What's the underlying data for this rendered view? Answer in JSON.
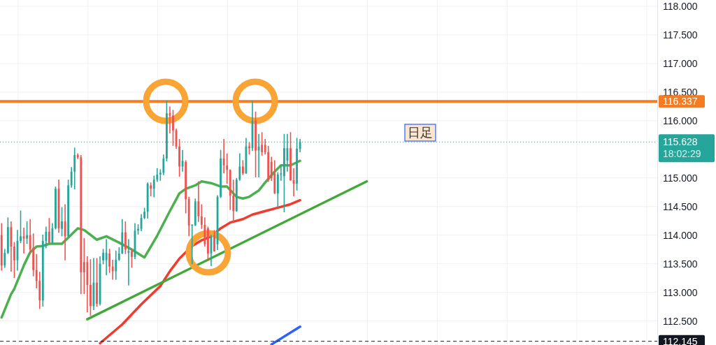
{
  "chart_data": {
    "type": "candlestick",
    "categories": [
      null,
      null,
      null,
      null,
      null,
      null,
      null,
      null,
      null,
      null,
      null,
      null,
      null,
      null,
      null,
      null,
      null,
      null,
      null,
      null,
      null,
      null,
      null,
      null,
      null,
      null,
      null,
      null,
      null,
      null,
      null,
      null,
      null,
      null,
      null,
      null,
      null,
      null,
      null,
      null,
      null,
      null,
      null,
      null,
      null,
      null,
      null,
      null,
      null,
      null,
      null,
      null,
      null,
      null,
      null,
      null,
      null,
      null,
      null,
      null,
      null,
      null,
      null,
      null,
      null,
      null,
      null,
      null,
      null,
      null,
      null,
      null,
      null,
      null,
      null,
      null,
      null,
      null,
      null,
      null,
      null,
      null,
      null,
      null,
      null,
      null,
      null,
      null,
      null,
      null,
      null,
      null,
      null,
      null,
      null,
      null,
      null,
      null,
      null,
      null,
      null,
      null,
      null,
      null,
      null,
      null,
      null,
      null,
      null,
      null,
      null,
      null,
      null,
      null,
      null,
      null,
      null,
      null,
      null,
      null,
      null,
      null,
      null,
      null,
      null,
      null,
      null,
      null,
      null,
      null,
      null,
      null,
      null,
      null,
      null,
      null,
      null,
      null,
      null,
      null,
      null,
      null,
      null,
      null,
      null,
      null,
      null,
      null,
      null,
      null,
      null,
      null,
      null,
      null,
      null,
      null,
      null,
      null,
      null,
      null,
      null,
      null,
      null,
      null,
      null,
      null,
      null,
      null,
      null,
      null,
      null,
      null,
      null,
      null,
      null,
      null,
      null,
      null,
      null,
      null,
      null,
      null,
      null,
      null,
      null,
      null,
      null,
      null,
      null,
      null,
      null,
      null,
      null,
      null,
      null,
      null,
      null,
      null,
      null,
      null,
      null,
      null,
      null,
      null,
      null,
      null,
      null
    ],
    "ohlc": [
      [
        114.0,
        114.2,
        113.39,
        113.47
      ],
      [
        113.47,
        113.75,
        113.44,
        113.69
      ],
      [
        113.69,
        114.3,
        113.68,
        114.14
      ],
      [
        114.14,
        114.23,
        113.37,
        113.8
      ],
      [
        113.8,
        113.87,
        113.26,
        113.56
      ],
      [
        113.56,
        114.08,
        113.39,
        113.9
      ],
      [
        113.9,
        114.42,
        113.87,
        113.98
      ],
      [
        113.98,
        114.12,
        113.69,
        113.94
      ],
      [
        113.94,
        114.23,
        113.86,
        114.0
      ],
      [
        114.0,
        114.27,
        113.68,
        113.75
      ],
      [
        113.78,
        114.02,
        113.29,
        113.39
      ],
      [
        113.39,
        113.66,
        113.08,
        113.2
      ],
      [
        113.2,
        113.35,
        112.72,
        112.86
      ],
      [
        112.86,
        114.0,
        112.76,
        113.9
      ],
      [
        113.9,
        114.14,
        113.78,
        114.06
      ],
      [
        114.06,
        114.29,
        113.87,
        113.87
      ],
      [
        113.87,
        114.2,
        113.86,
        114.12
      ],
      [
        114.12,
        114.84,
        114.11,
        114.81
      ],
      [
        114.81,
        114.96,
        114.05,
        114.12
      ],
      [
        114.11,
        114.48,
        113.99,
        114.24
      ],
      [
        114.24,
        114.53,
        113.57,
        113.98
      ],
      [
        113.98,
        114.96,
        113.98,
        114.87
      ],
      [
        114.87,
        115.18,
        114.84,
        115.11
      ],
      [
        115.11,
        115.52,
        114.81,
        115.4
      ],
      [
        115.4,
        115.42,
        115.34,
        115.36
      ],
      [
        115.36,
        115.39,
        112.98,
        113.35
      ],
      [
        113.53,
        113.94,
        112.98,
        113.35
      ],
      [
        113.53,
        113.62,
        112.66,
        113.13
      ],
      [
        113.13,
        113.57,
        112.6,
        112.76
      ],
      [
        112.76,
        113.59,
        112.7,
        113.17
      ],
      [
        113.17,
        113.59,
        112.76,
        112.8
      ],
      [
        112.8,
        113.62,
        112.78,
        113.5
      ],
      [
        113.56,
        113.75,
        113.5,
        113.69
      ],
      [
        113.56,
        113.92,
        113.31,
        113.69
      ],
      [
        113.68,
        113.75,
        113.35,
        113.45
      ],
      [
        113.45,
        113.56,
        113.23,
        113.37
      ],
      [
        113.37,
        113.72,
        113.23,
        113.57
      ],
      [
        113.57,
        113.78,
        113.56,
        113.68
      ],
      [
        113.68,
        114.27,
        113.68,
        114.05
      ],
      [
        114.05,
        114.23,
        113.68,
        113.75
      ],
      [
        113.69,
        113.92,
        113.13,
        113.72
      ],
      [
        113.72,
        113.75,
        113.44,
        113.62
      ],
      [
        113.62,
        114.2,
        113.59,
        114.08
      ],
      [
        114.08,
        114.18,
        114.02,
        114.11
      ],
      [
        114.11,
        114.36,
        114.08,
        114.3
      ],
      [
        114.3,
        114.47,
        114.29,
        114.41
      ],
      [
        114.41,
        114.91,
        114.3,
        114.9
      ],
      [
        114.87,
        114.91,
        114.69,
        114.81
      ],
      [
        114.81,
        115.03,
        114.67,
        114.97
      ],
      [
        114.97,
        115.16,
        114.94,
        115.06
      ],
      [
        115.06,
        115.14,
        114.96,
        115.09
      ],
      [
        115.09,
        115.4,
        115.06,
        115.34
      ],
      [
        115.34,
        116.34,
        115.3,
        116.13
      ],
      [
        116.13,
        116.24,
        115.79,
        116.09
      ],
      [
        116.09,
        116.18,
        115.57,
        115.83
      ],
      [
        115.83,
        115.85,
        115.52,
        115.55
      ],
      [
        115.55,
        115.67,
        115.03,
        115.2
      ],
      [
        115.2,
        115.48,
        115.12,
        115.3
      ],
      [
        115.28,
        115.3,
        114.39,
        114.63
      ],
      [
        114.63,
        114.66,
        113.99,
        114.17
      ],
      [
        114.17,
        114.18,
        113.5,
        114.18
      ],
      [
        114.17,
        114.63,
        114.17,
        114.59
      ],
      [
        114.59,
        114.93,
        114.24,
        114.33
      ],
      [
        114.33,
        114.53,
        114.12,
        114.18
      ],
      [
        114.18,
        114.3,
        113.81,
        113.84
      ],
      [
        114.12,
        114.14,
        113.56,
        113.68
      ],
      [
        113.68,
        114.0,
        113.47,
        113.98
      ],
      [
        114.0,
        114.08,
        113.72,
        113.72
      ],
      [
        113.84,
        114.69,
        113.75,
        114.67
      ],
      [
        114.67,
        115.48,
        114.66,
        115.34
      ],
      [
        115.34,
        115.67,
        115.09,
        115.22
      ],
      [
        115.22,
        115.42,
        114.91,
        115.14
      ],
      [
        115.14,
        115.14,
        114.45,
        114.69
      ],
      [
        114.69,
        114.96,
        114.24,
        114.42
      ],
      [
        114.42,
        114.99,
        114.42,
        114.97
      ],
      [
        114.97,
        115.42,
        114.96,
        115.2
      ],
      [
        115.2,
        115.3,
        115.06,
        115.08
      ],
      [
        115.08,
        115.69,
        115.08,
        115.55
      ],
      [
        115.55,
        115.61,
        115.42,
        115.52
      ],
      [
        115.52,
        116.34,
        115.48,
        116.0
      ],
      [
        116.0,
        116.15,
        115.02,
        115.48
      ],
      [
        115.48,
        115.76,
        115.02,
        115.55
      ],
      [
        115.58,
        115.79,
        115.4,
        115.45
      ],
      [
        115.58,
        115.67,
        115.42,
        115.45
      ],
      [
        115.45,
        115.55,
        114.94,
        114.96
      ],
      [
        115.28,
        115.36,
        114.96,
        115.0
      ],
      [
        115.08,
        115.3,
        114.73,
        114.73
      ],
      [
        114.73,
        115.09,
        114.48,
        115.06
      ],
      [
        115.06,
        115.22,
        114.96,
        115.08
      ],
      [
        115.03,
        115.76,
        114.41,
        115.52
      ],
      [
        115.3,
        115.76,
        115.12,
        115.52
      ],
      [
        115.52,
        115.79,
        114.96,
        114.96
      ],
      [
        114.96,
        115.16,
        114.69,
        114.9
      ],
      [
        114.9,
        115.69,
        114.79,
        115.51
      ],
      [
        115.51,
        115.67,
        115.46,
        115.628
      ],
      null,
      null,
      null,
      null,
      null,
      null,
      null,
      null,
      null,
      null,
      null,
      null,
      null,
      null,
      null,
      null,
      null,
      null,
      null,
      null,
      null,
      null,
      null,
      null,
      null,
      null,
      null,
      null,
      null,
      null,
      null,
      null,
      null,
      null,
      null,
      null,
      null,
      null,
      null,
      null,
      null,
      null,
      null,
      null,
      null,
      null,
      null,
      null,
      null,
      null,
      null,
      null,
      null,
      null,
      null,
      null,
      null,
      null,
      null,
      null,
      null,
      null,
      null,
      null,
      null,
      null,
      null,
      null,
      null,
      null,
      null,
      null,
      null,
      null,
      null,
      null,
      null,
      null,
      null,
      null,
      null,
      null,
      null,
      null,
      null,
      null,
      null,
      null,
      null,
      null,
      null,
      null,
      null,
      null,
      null,
      null,
      null,
      null,
      null,
      null,
      null,
      null,
      null,
      null,
      null,
      null,
      null,
      null,
      null,
      null,
      null,
      null
    ],
    "colors": [
      "#ef5350",
      "#26a69a",
      "#26a69a",
      "#ef5350",
      "#ef5350",
      "#26a69a",
      "#26a69a",
      "#ef5350",
      "#26a69a",
      "#ef5350",
      "#ef5350",
      "#ef5350",
      "#ef5350",
      "#26a69a",
      "#26a69a",
      "#ef5350",
      "#26a69a",
      "#26a69a",
      "#ef5350",
      "#26a69a",
      "#ef5350",
      "#26a69a",
      "#26a69a",
      "#26a69a",
      "#ef5350",
      "#ef5350",
      "#ef5350",
      "#ef5350",
      "#ef5350",
      "#26a69a",
      "#ef5350",
      "#26a69a",
      "#26a69a",
      "#26a69a",
      "#ef5350",
      "#ef5350",
      "#26a69a",
      "#26a69a",
      "#26a69a",
      "#ef5350",
      "#26a69a",
      "#ef5350",
      "#26a69a",
      "#26a69a",
      "#26a69a",
      "#26a69a",
      "#26a69a",
      "#ef5350",
      "#26a69a",
      "#26a69a",
      "#26a69a",
      "#26a69a",
      "#26a69a",
      "#ef5350",
      "#ef5350",
      "#ef5350",
      "#ef5350",
      "#26a69a",
      "#ef5350",
      "#ef5350",
      "#26a69a",
      "#26a69a",
      "#ef5350",
      "#ef5350",
      "#ef5350",
      "#ef5350",
      "#26a69a",
      "#ef5350",
      "#26a69a",
      "#26a69a",
      "#ef5350",
      "#ef5350",
      "#ef5350",
      "#ef5350",
      "#26a69a",
      "#26a69a",
      "#ef5350",
      "#26a69a",
      "#ef5350",
      "#26a69a",
      "#ef5350",
      "#26a69a",
      "#ef5350",
      "#ef5350",
      "#ef5350",
      "#ef5350",
      "#ef5350",
      "#26a69a",
      "#26a69a",
      "#26a69a",
      "#26a69a",
      "#ef5350",
      "#ef5350",
      "#26a69a",
      "#26a69a",
      null,
      null,
      null,
      null,
      null,
      null,
      null,
      null,
      null,
      null,
      null,
      null,
      null,
      null,
      null,
      null,
      null,
      null,
      null,
      null,
      null,
      null,
      null,
      null,
      null,
      null,
      null,
      null,
      null,
      null,
      null,
      null,
      null,
      null,
      null,
      null,
      null,
      null,
      null,
      null,
      null,
      null,
      null,
      null,
      null,
      null,
      null,
      null,
      null,
      null,
      null,
      null,
      null,
      null,
      null,
      null,
      null,
      null,
      null,
      null,
      null,
      null,
      null,
      null,
      null,
      null,
      null,
      null,
      null,
      null,
      null,
      null,
      null,
      null,
      null,
      null,
      null,
      null,
      null,
      null,
      null,
      null,
      null,
      null,
      null,
      null,
      null,
      null,
      null,
      null,
      null,
      null,
      null,
      null,
      null,
      null,
      null,
      null,
      null,
      null,
      null,
      null,
      null,
      null,
      null,
      null,
      null,
      null,
      null,
      null,
      null,
      null
    ],
    "series": [
      {
        "type": "line",
        "color": "#4caf50",
        "values": [
          112.56,
          null,
          null,
          112.97,
          113.06,
          null,
          null,
          113.47,
          null,
          113.7,
          null,
          113.8,
          null,
          113.81,
          null,
          113.85,
          null,
          null,
          null,
          113.85,
          null,
          null,
          null,
          null,
          114.12,
          null,
          114.09,
          null,
          null,
          null,
          113.92,
          null,
          null,
          113.98,
          null,
          null,
          null,
          113.87,
          null,
          null,
          null,
          113.75,
          null,
          null,
          null,
          113.61,
          null,
          null,
          null,
          113.99,
          null,
          null,
          null,
          114.42,
          null,
          null,
          114.73,
          null,
          114.81,
          null,
          null,
          114.87,
          null,
          114.94,
          null,
          null,
          114.91,
          null,
          null,
          114.85,
          null,
          114.85,
          null,
          null,
          114.67,
          null,
          114.64,
          null,
          114.67,
          null,
          null,
          114.78,
          null,
          114.92,
          null,
          null,
          115.11,
          null,
          115.22,
          null,
          null,
          115.22,
          null,
          null,
          115.3,
          null,
          null,
          null,
          null,
          null,
          null,
          null,
          null,
          null,
          null,
          null,
          null,
          null,
          null,
          null,
          null,
          null,
          null,
          null,
          null,
          null,
          null,
          null,
          null,
          null,
          null,
          null,
          null,
          null,
          null,
          null,
          null,
          null,
          null,
          null,
          null,
          null,
          null,
          null,
          null,
          null,
          null,
          null,
          null,
          null,
          null,
          null,
          null,
          null,
          null,
          null,
          null,
          null,
          null,
          null,
          null,
          null,
          null,
          null,
          null,
          null,
          null,
          null,
          null,
          null,
          null,
          null,
          null,
          null,
          null,
          null,
          null,
          null,
          null,
          null,
          null,
          null,
          null,
          null,
          null,
          null,
          null,
          null,
          null,
          null,
          null,
          null,
          null,
          null,
          null,
          null,
          null,
          null,
          null,
          null,
          null,
          null,
          null,
          null,
          null,
          null,
          null,
          null,
          null,
          null,
          null,
          null,
          null,
          null,
          null,
          null,
          null
        ]
      },
      {
        "type": "line",
        "color": "#f23a2e",
        "values": [
          null,
          null,
          null,
          null,
          null,
          null,
          null,
          null,
          null,
          null,
          null,
          null,
          null,
          null,
          null,
          null,
          null,
          null,
          null,
          null,
          null,
          null,
          null,
          null,
          null,
          null,
          null,
          null,
          null,
          null,
          null,
          112.11,
          null,
          null,
          null,
          null,
          null,
          null,
          112.44,
          null,
          null,
          null,
          null,
          null,
          112.79,
          null,
          null,
          null,
          null,
          null,
          113.11,
          null,
          null,
          113.37,
          null,
          null,
          113.59,
          null,
          null,
          null,
          113.81,
          null,
          null,
          113.91,
          null,
          null,
          113.98,
          null,
          null,
          114.12,
          null,
          null,
          114.22,
          null,
          null,
          null,
          114.28,
          null,
          null,
          114.36,
          null,
          null,
          null,
          114.42,
          null,
          null,
          null,
          114.48,
          null,
          null,
          null,
          114.54,
          null,
          null,
          114.61,
          null,
          null,
          null,
          null,
          null,
          null,
          null,
          null,
          null,
          null,
          null,
          null,
          null,
          null,
          null,
          null,
          null,
          null,
          null,
          null,
          null,
          null,
          null,
          null,
          null,
          null,
          null,
          null,
          null,
          null,
          null,
          null,
          null,
          null,
          null,
          null,
          null,
          null,
          null,
          null,
          null,
          null,
          null,
          null,
          null,
          null,
          null,
          null,
          null,
          null,
          null,
          null,
          null,
          null,
          null,
          null,
          null,
          null,
          null,
          null,
          null,
          null,
          null,
          null,
          null,
          null,
          null,
          null,
          null,
          null,
          null,
          null,
          null,
          null,
          null,
          null,
          null,
          null,
          null,
          null,
          null,
          null,
          null,
          null,
          null,
          null,
          null,
          null,
          null,
          null,
          null,
          null,
          null,
          null,
          null,
          null,
          null,
          null,
          null,
          null,
          null,
          null,
          null,
          null,
          null,
          null,
          null,
          null,
          null,
          null,
          null,
          null
        ]
      },
      {
        "type": "line",
        "color": "#43a83a",
        "values": [
          null,
          null,
          null,
          null,
          null,
          null,
          null,
          null,
          null,
          null,
          null,
          null,
          null,
          null,
          null,
          null,
          null,
          null,
          null,
          null,
          null,
          null,
          null,
          null,
          null,
          null,
          null,
          112.53,
          null,
          null,
          null,
          null,
          null,
          null,
          null,
          null,
          null,
          null,
          null,
          null,
          null,
          null,
          null,
          null,
          null,
          null,
          null,
          null,
          null,
          null,
          null,
          null,
          null,
          null,
          null,
          null,
          null,
          null,
          null,
          null,
          null,
          null,
          null,
          null,
          null,
          null,
          null,
          null,
          null,
          null,
          null,
          null,
          null,
          null,
          null,
          null,
          null,
          null,
          null,
          null,
          null,
          null,
          null,
          null,
          null,
          null,
          null,
          null,
          null,
          null,
          null,
          null,
          null,
          null,
          null,
          null,
          null,
          null,
          null,
          null,
          null,
          null,
          null,
          null,
          null,
          null,
          null,
          null,
          null,
          null,
          null,
          null,
          null,
          null,
          null,
          114.94,
          null,
          null,
          null,
          null,
          null,
          null,
          null,
          null,
          null,
          null,
          null,
          null,
          null,
          null,
          null,
          null,
          null,
          null,
          null,
          null,
          null,
          null,
          null,
          null,
          null,
          null,
          null,
          null,
          null,
          null,
          null,
          null,
          null,
          null,
          null,
          null,
          null,
          null,
          null,
          null,
          null,
          null,
          null,
          null,
          null,
          null,
          null,
          null,
          null,
          null,
          null,
          null,
          null,
          null,
          null,
          null,
          null,
          null,
          null,
          null,
          null,
          null,
          null,
          null,
          null,
          null,
          null,
          null,
          null,
          null,
          null,
          null,
          null,
          null,
          null,
          null,
          null,
          null,
          null,
          null,
          null,
          null,
          null,
          null,
          null,
          null,
          null,
          null,
          null,
          null,
          null
        ]
      },
      {
        "type": "line",
        "color": "#2962ff",
        "values": [
          null,
          null,
          null,
          null,
          null,
          null,
          null,
          null,
          null,
          null,
          null,
          null,
          null,
          null,
          null,
          null,
          null,
          null,
          null,
          null,
          null,
          null,
          null,
          null,
          null,
          null,
          null,
          null,
          null,
          null,
          null,
          null,
          null,
          null,
          null,
          null,
          null,
          null,
          null,
          null,
          null,
          null,
          null,
          null,
          null,
          null,
          null,
          null,
          null,
          null,
          null,
          null,
          null,
          null,
          null,
          null,
          null,
          null,
          null,
          null,
          null,
          null,
          null,
          null,
          null,
          null,
          null,
          null,
          null,
          null,
          null,
          null,
          null,
          null,
          null,
          null,
          null,
          null,
          null,
          null,
          null,
          null,
          null,
          null,
          null,
          112.09,
          null,
          null,
          null,
          null,
          null,
          null,
          null,
          null,
          112.4,
          null,
          null,
          null,
          null,
          null,
          null,
          null,
          null,
          null,
          null,
          null,
          null,
          null,
          null,
          null,
          null,
          null,
          null,
          null,
          null,
          null,
          null,
          null,
          null,
          null,
          null,
          null,
          null,
          null,
          null,
          null,
          null,
          null,
          null,
          null,
          null,
          null,
          null,
          null,
          null,
          null,
          null,
          null,
          null,
          null,
          null,
          null,
          null,
          null,
          null,
          null,
          null,
          null,
          null,
          null,
          null,
          null,
          null,
          null,
          null,
          null,
          null,
          null,
          null,
          null,
          null,
          null,
          null,
          null,
          null,
          null,
          null,
          null,
          null,
          null,
          null,
          null,
          null,
          null,
          null,
          null,
          null,
          null,
          null,
          null,
          null,
          null,
          null,
          null,
          null,
          null,
          null,
          null,
          null,
          null,
          null,
          null,
          null,
          null,
          null,
          null,
          null,
          null,
          null,
          null,
          null,
          null,
          null,
          null,
          null,
          null,
          null
        ]
      }
    ],
    "ylim": [
      112.08,
      118.11
    ],
    "yticks": [
      {
        "value": 112.5,
        "label": "112.500"
      },
      {
        "value": 113,
        "label": "113.000"
      },
      {
        "value": 113.5,
        "label": "113.500"
      },
      {
        "value": 114,
        "label": "114.000"
      },
      {
        "value": 114.5,
        "label": "114.500"
      },
      {
        "value": 115,
        "label": "115.000"
      },
      {
        "value": 116,
        "label": "116.000"
      },
      {
        "value": 116.5,
        "label": "116.500"
      },
      {
        "value": 117,
        "label": "117.000"
      },
      {
        "value": 117.5,
        "label": "117.500"
      },
      {
        "value": 118,
        "label": "118.000"
      }
    ],
    "tick_labels": "y",
    "grid": true,
    "ref_lines": [
      {
        "axis": "y",
        "value": 116.337,
        "label": "116.337",
        "color": "#f57c20",
        "line_style": "solid"
      },
      {
        "axis": "y",
        "value": 115.628,
        "label": "115.628",
        "color": "#26a69a",
        "line_style": "dotted"
      },
      {
        "axis": "y",
        "value": 112.145,
        "label": "112.145",
        "color": "#131722",
        "line_style": "dashed"
      }
    ],
    "annotations": [
      "18:02:29",
      "日足"
    ]
  }
}
